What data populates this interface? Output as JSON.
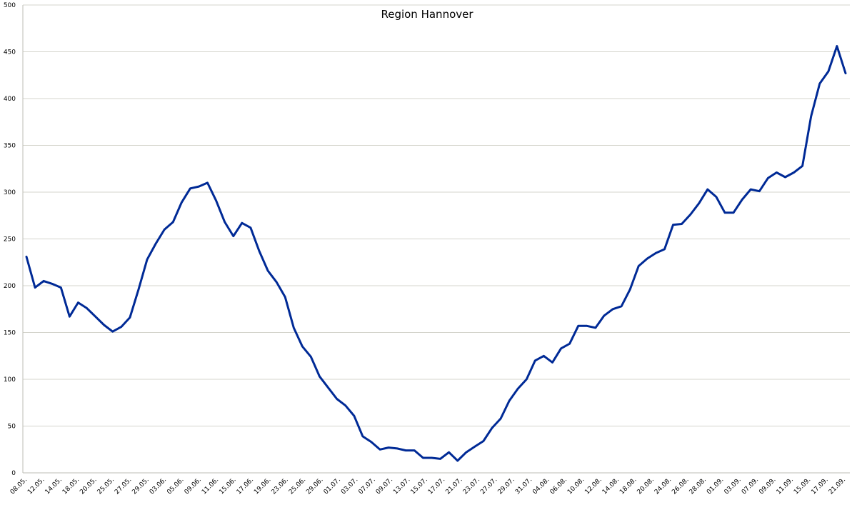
{
  "chart_data": {
    "type": "line",
    "title": "Region Hannover",
    "xlabel": "",
    "ylabel": "",
    "ylim": [
      0,
      500
    ],
    "yticks": [
      "0",
      "50",
      "100",
      "150",
      "200",
      "250",
      "300",
      "350",
      "400",
      "450",
      "500"
    ],
    "grid": true,
    "legend": "none",
    "line_color": "#002a96",
    "x_tick_labels": [
      "08.05.",
      "12.05.",
      "14.05.",
      "18.05.",
      "20.05.",
      "25.05.",
      "27.05.",
      "29.05.",
      "03.06.",
      "05.06.",
      "09.06.",
      "11.06.",
      "15.06.",
      "17.06.",
      "19.06.",
      "23.06.",
      "25.06.",
      "29.06.",
      "01.07.",
      "03.07.",
      "07.07.",
      "09.07.",
      "13.07.",
      "15.07.",
      "17.07.",
      "21.07.",
      "23.07.",
      "27.07.",
      "29.07.",
      "31.07.",
      "04.08.",
      "06.08.",
      "10.08.",
      "12.08.",
      "14.08.",
      "18.08.",
      "20.08.",
      "24.08.",
      "26.08.",
      "28.08.",
      "01.09.",
      "03.09.",
      "07.09.",
      "09.09.",
      "11.09.",
      "15.09.",
      "17.09.",
      "21.09."
    ],
    "series": [
      {
        "values": [
          231,
          198,
          205,
          202,
          198,
          167,
          182,
          176,
          167,
          158,
          151,
          156,
          166,
          196,
          228,
          245,
          260,
          268,
          289,
          304,
          306,
          310,
          291,
          268,
          253,
          267,
          262,
          237,
          216,
          204,
          188,
          155,
          135,
          124,
          103,
          91,
          79,
          72,
          61,
          39,
          33,
          25,
          27,
          26,
          24,
          24,
          16,
          16,
          15,
          22,
          13,
          22,
          28,
          34,
          48,
          58,
          77,
          90,
          100,
          120,
          125,
          118,
          133,
          138,
          157,
          157,
          155,
          168,
          175,
          178,
          196,
          221,
          229,
          235,
          239,
          265,
          266,
          276,
          288,
          303,
          295,
          278,
          278,
          292,
          303,
          301,
          315,
          321,
          316,
          321,
          328,
          381,
          416,
          429,
          456,
          427
        ]
      }
    ]
  }
}
